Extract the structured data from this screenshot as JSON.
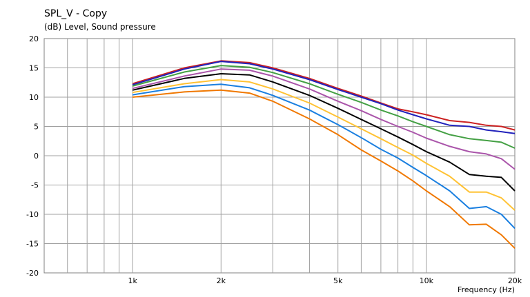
{
  "chart_data": {
    "type": "line",
    "title": "SPL_V - Copy",
    "ylabel": "(dB)  Level, Sound pressure",
    "xlabel": "Frequency  (Hz)",
    "xscale": "log",
    "xlim": [
      500,
      20000
    ],
    "ylim": [
      -20,
      20
    ],
    "grid": true,
    "y_ticks": [
      -20,
      -15,
      -10,
      -5,
      0,
      5,
      10,
      15,
      20
    ],
    "x_tick_labels": [
      {
        "value": 1000,
        "label": "1k"
      },
      {
        "value": 2000,
        "label": "2k"
      },
      {
        "value": 5000,
        "label": "5k"
      },
      {
        "value": 10000,
        "label": "10k"
      },
      {
        "value": 20000,
        "label": "20k"
      }
    ],
    "x_grid": [
      600,
      700,
      800,
      900,
      1000,
      2000,
      3000,
      4000,
      5000,
      6000,
      7000,
      8000,
      9000,
      10000,
      20000
    ],
    "x": [
      1000,
      1500,
      2000,
      2500,
      3000,
      4000,
      5000,
      6000,
      7000,
      8000,
      9000,
      10000,
      12000,
      14000,
      16000,
      18000,
      20000
    ],
    "series": [
      {
        "color": "#cc2222",
        "values": [
          12.3,
          15.0,
          16.2,
          15.9,
          15.0,
          13.2,
          11.5,
          10.2,
          9.0,
          8.0,
          7.5,
          7.0,
          6.0,
          5.7,
          5.2,
          5.0,
          4.4
        ]
      },
      {
        "color": "#2222bb",
        "values": [
          12.1,
          14.8,
          16.1,
          15.7,
          14.8,
          13.0,
          11.3,
          10.0,
          8.9,
          7.8,
          7.0,
          6.3,
          5.2,
          5.0,
          4.4,
          4.1,
          3.8
        ]
      },
      {
        "color": "#44a044",
        "values": [
          11.9,
          14.3,
          15.4,
          15.1,
          14.2,
          12.3,
          10.5,
          9.1,
          7.8,
          6.8,
          5.8,
          5.0,
          3.6,
          2.9,
          2.6,
          2.3,
          1.3
        ]
      },
      {
        "color": "#aa55aa",
        "values": [
          11.5,
          13.6,
          14.8,
          14.6,
          13.6,
          11.4,
          9.3,
          7.7,
          6.2,
          5.0,
          4.0,
          3.0,
          1.6,
          0.7,
          0.3,
          -0.5,
          -2.3
        ]
      },
      {
        "color": "#000000",
        "values": [
          11.2,
          13.2,
          14.0,
          13.8,
          12.6,
          10.3,
          8.1,
          6.2,
          4.6,
          3.2,
          1.9,
          0.7,
          -1.1,
          -3.2,
          -3.5,
          -3.7,
          -6.0
        ]
      },
      {
        "color": "#ffc233",
        "values": [
          10.8,
          12.3,
          13.0,
          12.6,
          11.4,
          9.0,
          6.6,
          4.6,
          2.9,
          1.4,
          0.1,
          -1.3,
          -3.5,
          -6.2,
          -6.2,
          -7.2,
          -9.3
        ]
      },
      {
        "color": "#1a7fe0",
        "values": [
          10.4,
          11.8,
          12.2,
          11.6,
          10.3,
          7.8,
          5.3,
          3.1,
          1.1,
          -0.4,
          -2.0,
          -3.4,
          -6.0,
          -9.0,
          -8.7,
          -10.0,
          -12.4
        ]
      },
      {
        "color": "#f07800",
        "values": [
          10.0,
          10.9,
          11.2,
          10.7,
          9.3,
          6.3,
          3.6,
          1.0,
          -0.9,
          -2.6,
          -4.3,
          -6.0,
          -8.7,
          -11.8,
          -11.7,
          -13.5,
          -15.8
        ]
      }
    ]
  }
}
